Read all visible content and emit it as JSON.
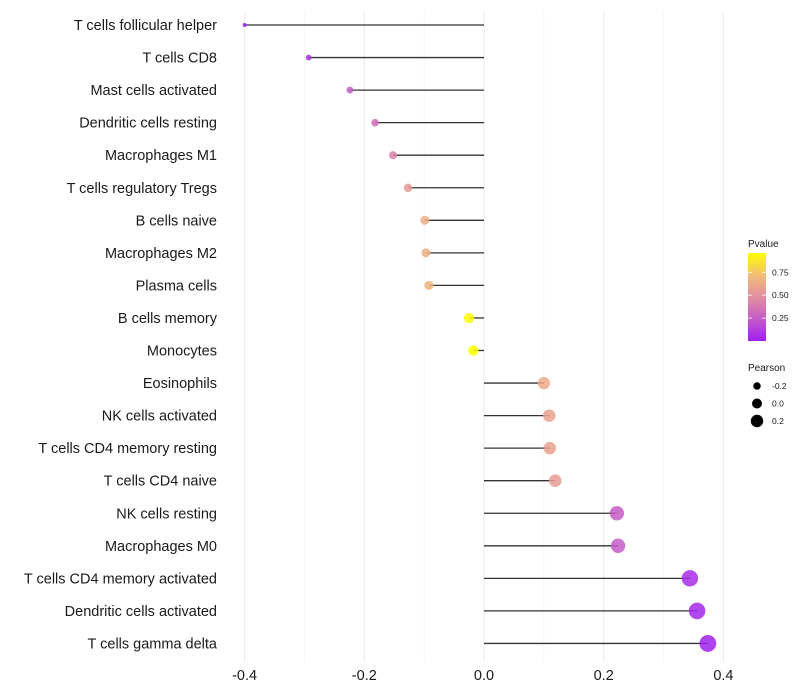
{
  "chart_data": {
    "type": "lollipop",
    "title": "",
    "xlabel": "",
    "ylabel": "",
    "xlim": [
      -0.4,
      0.42
    ],
    "xticks": [
      -0.4,
      -0.2,
      0.0,
      0.2,
      0.4
    ],
    "xtick_labels": [
      "-0.4",
      "-0.2",
      "0.0",
      "0.2",
      "0.4"
    ],
    "grid": "vertical major and minor lines",
    "categories": [
      "T cells follicular helper",
      "T cells CD8",
      "Mast cells activated",
      "Dendritic cells resting",
      "Macrophages M1",
      "T cells regulatory  Tregs ",
      "B cells naive",
      "Macrophages M2",
      "Plasma cells",
      "B cells memory",
      "Monocytes",
      "Eosinophils",
      "NK cells activated",
      "T cells CD4 memory resting",
      "T cells CD4 naive",
      "NK cells resting",
      "Macrophages M0",
      "T cells CD4 memory activated",
      "Dendritic cells activated",
      "T cells gamma delta"
    ],
    "pearson": [
      -0.4,
      -0.293,
      -0.224,
      -0.182,
      -0.152,
      -0.127,
      -0.099,
      -0.097,
      -0.092,
      -0.025,
      -0.018,
      0.1,
      0.109,
      0.11,
      0.119,
      0.222,
      0.224,
      0.344,
      0.356,
      0.374
    ],
    "pvalue": [
      0.0,
      0.08,
      0.25,
      0.33,
      0.42,
      0.53,
      0.65,
      0.66,
      0.68,
      0.95,
      0.96,
      0.62,
      0.58,
      0.58,
      0.55,
      0.25,
      0.24,
      0.05,
      0.03,
      0.01
    ],
    "legend": {
      "placement": "right",
      "color": {
        "title": "Pvalue",
        "ticks": [
          0.25,
          0.5,
          0.75
        ],
        "tick_labels": [
          "0.25",
          "0.50",
          "0.75"
        ],
        "range": [
          0.0,
          0.96
        ],
        "low_color": "#A020F0",
        "mid_color": "#E28FA0",
        "high_color": "#FFFF00"
      },
      "size": {
        "title": "Pearson",
        "values": [
          -0.2,
          0.0,
          0.2
        ],
        "labels": [
          "-0.2",
          "0.0",
          "0.2"
        ]
      }
    }
  }
}
